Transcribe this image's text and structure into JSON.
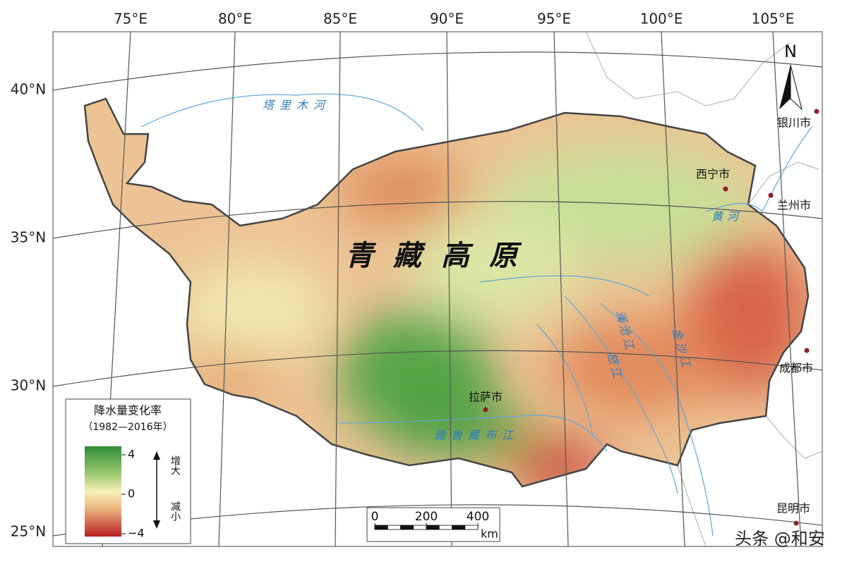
{
  "map": {
    "title": "青藏高原",
    "north": "N",
    "longitude_labels": [
      "75°E",
      "80°E",
      "85°E",
      "90°E",
      "95°E",
      "100°E",
      "105°E"
    ],
    "latitude_labels": [
      "40°N",
      "35°N",
      "30°N",
      "25°N"
    ],
    "rivers": [
      "塔里木河",
      "黄河",
      "澜沧江",
      "金沙江",
      "怒江",
      "雅鲁藏布江"
    ],
    "cities": [
      "银川市",
      "西宁市",
      "兰州市",
      "成都市",
      "拉萨市",
      "昆明市"
    ]
  },
  "legend": {
    "title": "降水量变化率",
    "subtitle": "（1982—2016年）",
    "ticks": [
      4,
      0,
      {
        "value": -4,
        "label": "−4"
      }
    ],
    "increase": "增大",
    "decrease": "减小"
  },
  "scale_bar": {
    "ticks": [
      0,
      200,
      400
    ],
    "unit": "km"
  },
  "watermark": "头条 @和安"
}
